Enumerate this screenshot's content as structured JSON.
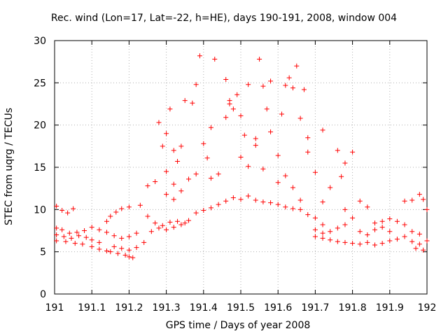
{
  "chart_data": {
    "type": "scatter",
    "title": "Rec. wind (Lon=17, Lat=-22, h=HE), days 190-191, 2008, window 004",
    "xlabel": "GPS time / Days of year 2008",
    "ylabel": "STEC from uqrg / TECUs",
    "xlim": [
      191,
      192
    ],
    "ylim": [
      0,
      30
    ],
    "xticks": [
      "191",
      "191.1",
      "191.2",
      "191.3",
      "191.4",
      "191.5",
      "191.6",
      "191.7",
      "191.8",
      "191.9",
      "192"
    ],
    "yticks": [
      "0",
      "5",
      "10",
      "15",
      "20",
      "25",
      "30"
    ],
    "grid": true,
    "marker": "+",
    "color": "#ff0000",
    "series": [
      {
        "points": [
          [
            191.005,
            10.4
          ],
          [
            191.02,
            9.9
          ],
          [
            191.035,
            9.6
          ],
          [
            191.05,
            10.1
          ],
          [
            191.005,
            7.8
          ],
          [
            191.02,
            7.6
          ],
          [
            191.04,
            7.2
          ],
          [
            191.06,
            7.3
          ],
          [
            191.08,
            7.5
          ],
          [
            191.1,
            7.9
          ],
          [
            191.12,
            7.6
          ],
          [
            191.005,
            7.0
          ],
          [
            191.025,
            6.8
          ],
          [
            191.045,
            6.6
          ],
          [
            191.065,
            6.9
          ],
          [
            191.085,
            6.7
          ],
          [
            191.1,
            6.4
          ],
          [
            191.12,
            6.1
          ],
          [
            191.005,
            6.3
          ],
          [
            191.03,
            6.2
          ],
          [
            191.055,
            6.0
          ],
          [
            191.075,
            5.9
          ],
          [
            191.1,
            5.6
          ],
          [
            191.12,
            5.3
          ],
          [
            191.14,
            5.1
          ],
          [
            191.14,
            8.6
          ],
          [
            191.15,
            9.2
          ],
          [
            191.165,
            9.7
          ],
          [
            191.18,
            10.1
          ],
          [
            191.14,
            7.3
          ],
          [
            191.16,
            6.9
          ],
          [
            191.18,
            6.6
          ],
          [
            191.2,
            6.8
          ],
          [
            191.22,
            7.2
          ],
          [
            191.15,
            5.0
          ],
          [
            191.17,
            4.8
          ],
          [
            191.19,
            4.6
          ],
          [
            191.2,
            4.4
          ],
          [
            191.21,
            4.3
          ],
          [
            191.16,
            5.6
          ],
          [
            191.18,
            5.4
          ],
          [
            191.2,
            5.2
          ],
          [
            191.22,
            5.5
          ],
          [
            191.24,
            6.1
          ],
          [
            191.2,
            10.3
          ],
          [
            191.23,
            10.5
          ],
          [
            191.25,
            12.8
          ],
          [
            191.27,
            13.3
          ],
          [
            191.28,
            20.3
          ],
          [
            191.29,
            17.5
          ],
          [
            191.3,
            19.0
          ],
          [
            191.31,
            21.9
          ],
          [
            191.32,
            17.0
          ],
          [
            191.33,
            15.7
          ],
          [
            191.25,
            9.2
          ],
          [
            191.27,
            8.4
          ],
          [
            191.29,
            8.1
          ],
          [
            191.31,
            8.5
          ],
          [
            191.33,
            8.6
          ],
          [
            191.35,
            8.4
          ],
          [
            191.26,
            7.4
          ],
          [
            191.28,
            7.8
          ],
          [
            191.3,
            7.6
          ],
          [
            191.32,
            7.9
          ],
          [
            191.34,
            8.2
          ],
          [
            191.36,
            8.7
          ],
          [
            191.3,
            11.8
          ],
          [
            191.32,
            11.2
          ],
          [
            191.34,
            12.2
          ],
          [
            191.36,
            13.6
          ],
          [
            191.38,
            14.2
          ],
          [
            191.3,
            14.5
          ],
          [
            191.32,
            13.0
          ],
          [
            191.34,
            17.5
          ],
          [
            191.35,
            22.9
          ],
          [
            191.37,
            22.6
          ],
          [
            191.38,
            24.8
          ],
          [
            191.39,
            28.2
          ],
          [
            191.4,
            17.8
          ],
          [
            191.41,
            16.1
          ],
          [
            191.42,
            19.7
          ],
          [
            191.43,
            27.8
          ],
          [
            191.38,
            9.6
          ],
          [
            191.4,
            9.9
          ],
          [
            191.42,
            10.2
          ],
          [
            191.44,
            10.6
          ],
          [
            191.46,
            11.0
          ],
          [
            191.42,
            13.7
          ],
          [
            191.44,
            14.2
          ],
          [
            191.46,
            20.9
          ],
          [
            191.47,
            22.5
          ],
          [
            191.48,
            21.9
          ],
          [
            191.46,
            25.4
          ],
          [
            191.47,
            22.9
          ],
          [
            191.49,
            23.6
          ],
          [
            191.5,
            21.1
          ],
          [
            191.51,
            18.8
          ],
          [
            191.48,
            11.4
          ],
          [
            191.5,
            11.2
          ],
          [
            191.52,
            11.6
          ],
          [
            191.54,
            11.1
          ],
          [
            191.56,
            10.9
          ],
          [
            191.52,
            24.8
          ],
          [
            191.54,
            18.4
          ],
          [
            191.55,
            27.8
          ],
          [
            191.56,
            24.6
          ],
          [
            191.57,
            21.9
          ],
          [
            191.5,
            16.2
          ],
          [
            191.52,
            15.1
          ],
          [
            191.54,
            17.6
          ],
          [
            191.56,
            14.8
          ],
          [
            191.58,
            25.2
          ],
          [
            191.58,
            10.8
          ],
          [
            191.6,
            10.6
          ],
          [
            191.62,
            10.3
          ],
          [
            191.64,
            10.1
          ],
          [
            191.66,
            10.0
          ],
          [
            191.58,
            19.2
          ],
          [
            191.6,
            16.4
          ],
          [
            191.61,
            21.3
          ],
          [
            191.62,
            24.7
          ],
          [
            191.63,
            25.6
          ],
          [
            191.64,
            24.4
          ],
          [
            191.65,
            27.0
          ],
          [
            191.66,
            20.8
          ],
          [
            191.67,
            24.2
          ],
          [
            191.68,
            18.5
          ],
          [
            191.6,
            13.2
          ],
          [
            191.62,
            14.0
          ],
          [
            191.64,
            12.6
          ],
          [
            191.66,
            11.1
          ],
          [
            191.68,
            9.4
          ],
          [
            191.68,
            16.8
          ],
          [
            191.7,
            14.4
          ],
          [
            191.72,
            19.4
          ],
          [
            191.7,
            9.0
          ],
          [
            191.72,
            8.2
          ],
          [
            191.7,
            7.6
          ],
          [
            191.72,
            7.2
          ],
          [
            191.74,
            7.4
          ],
          [
            191.76,
            7.8
          ],
          [
            191.78,
            8.2
          ],
          [
            191.7,
            6.8
          ],
          [
            191.72,
            6.6
          ],
          [
            191.74,
            6.4
          ],
          [
            191.76,
            6.2
          ],
          [
            191.78,
            6.1
          ],
          [
            191.72,
            10.9
          ],
          [
            191.74,
            12.6
          ],
          [
            191.76,
            17.0
          ],
          [
            191.77,
            13.9
          ],
          [
            191.78,
            15.5
          ],
          [
            191.78,
            10.0
          ],
          [
            191.8,
            9.0
          ],
          [
            191.8,
            16.8
          ],
          [
            191.82,
            11.0
          ],
          [
            191.84,
            10.3
          ],
          [
            191.8,
            6.0
          ],
          [
            191.82,
            5.9
          ],
          [
            191.84,
            6.1
          ],
          [
            191.86,
            5.8
          ],
          [
            191.88,
            6.0
          ],
          [
            191.82,
            7.4
          ],
          [
            191.84,
            7.0
          ],
          [
            191.86,
            7.6
          ],
          [
            191.88,
            7.9
          ],
          [
            191.9,
            7.4
          ],
          [
            191.86,
            8.4
          ],
          [
            191.88,
            8.6
          ],
          [
            191.9,
            8.9
          ],
          [
            191.92,
            8.6
          ],
          [
            191.94,
            8.2
          ],
          [
            191.9,
            6.3
          ],
          [
            191.92,
            6.5
          ],
          [
            191.94,
            6.8
          ],
          [
            191.96,
            6.2
          ],
          [
            191.98,
            5.9
          ],
          [
            191.94,
            11.0
          ],
          [
            191.96,
            11.1
          ],
          [
            191.98,
            11.8
          ],
          [
            191.99,
            11.2
          ],
          [
            192.0,
            10.0
          ],
          [
            191.96,
            7.4
          ],
          [
            191.98,
            7.1
          ],
          [
            192.0,
            6.3
          ],
          [
            191.99,
            5.2
          ],
          [
            191.97,
            5.4
          ]
        ]
      }
    ]
  }
}
